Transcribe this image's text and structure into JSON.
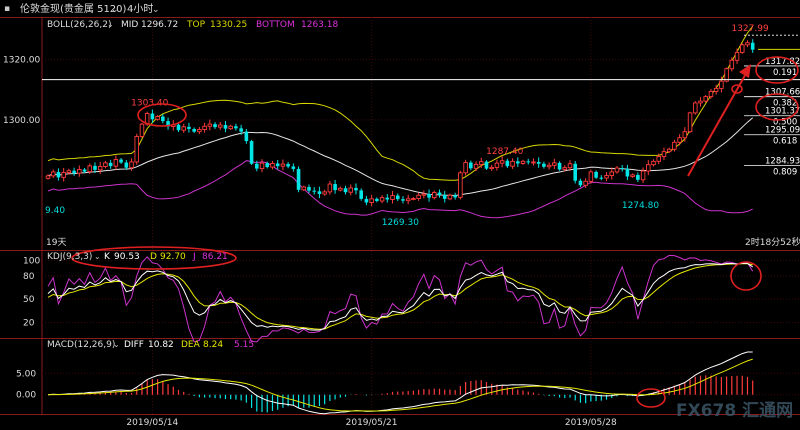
{
  "toolbar": {
    "title": "伦敦金现(贵金属 5120)",
    "timeframe": "4小时"
  },
  "colors": {
    "bg": "#000000",
    "grid": "#3a0000",
    "up": "#ff3b3b",
    "down": "#00e5e5",
    "boll_mid": "#e6e6e6",
    "boll_top": "#d8d800",
    "boll_bottom": "#cc33cc",
    "k": "#ffffff",
    "d": "#e6e600",
    "j": "#cc33cc",
    "diff": "#ffffff",
    "dea": "#e6e600",
    "annot": "#e02020"
  },
  "main_panel": {
    "indicator": "BOLL(26,26,2)",
    "mid_label": "MID",
    "mid_value": "1296.72",
    "top_label": "TOP",
    "top_value": "1330.25",
    "bottom_label": "BOTTOM",
    "bottom_value": "1263.18",
    "ylim": [
      1257,
      1334
    ],
    "yticks": [
      1320.0,
      1300.0
    ],
    "ytick_labels": [
      "1320.00",
      "1300.00"
    ],
    "corner_value": "9.40",
    "bottom_left_text": "19天",
    "countdown_text": "2时18分52秒",
    "peak_labels": [
      {
        "text": "1303.40",
        "index": 19,
        "value": 1303.4
      },
      {
        "text": "1269.30",
        "index": 67,
        "value": 1269.3
      },
      {
        "text": "1287.40",
        "index": 87,
        "value": 1287.4
      },
      {
        "text": "1274.80",
        "index": 113,
        "value": 1274.8
      },
      {
        "text": "1327.99",
        "index": 134,
        "value": 1327.99
      }
    ],
    "horizontal_line_value": 1313.3,
    "fib_levels": [
      {
        "price": "1317.82",
        "ratio": "0.191",
        "value": 1317.82
      },
      {
        "price": "1307.66",
        "ratio": "0.382",
        "value": 1307.66
      },
      {
        "price": "1301.37",
        "ratio": "0.500",
        "value": 1301.37
      },
      {
        "price": "1295.09",
        "ratio": "0.618",
        "value": 1295.09
      },
      {
        "price": "1284.93",
        "ratio": "0.809",
        "value": 1284.93
      }
    ],
    "fib_top_value": 1327.99
  },
  "kdj_panel": {
    "indicator": "KDJ(9,3,3)",
    "k_label": "K",
    "k_value": "90.53",
    "d_label": "D",
    "d_value": "92.70",
    "j_label": "J",
    "j_value": "86.21",
    "ylim": [
      0,
      112
    ],
    "yticks": [
      100,
      80,
      50,
      20
    ],
    "ytick_labels": [
      "100",
      "80",
      "50",
      "20"
    ]
  },
  "macd_panel": {
    "indicator": "MACD(12,26,9)",
    "diff_label": "DIFF",
    "diff_value": "10.82",
    "dea_label": "DEA",
    "dea_value": "8.24",
    "macd_value": "5.15",
    "ylim": [
      -4.5,
      13
    ],
    "yticks": [
      5.0,
      0.0
    ],
    "ytick_labels": [
      "5.00",
      "0.00"
    ]
  },
  "x_axis": {
    "date_labels": [
      {
        "text": "2019/05/14",
        "index": 20
      },
      {
        "text": "2019/05/21",
        "index": 62
      },
      {
        "text": "2019/05/28",
        "index": 104
      }
    ]
  },
  "watermark": "FX678 汇通网",
  "chart_data": {
    "type": "candlestick",
    "closes": [
      1281.5,
      1282.8,
      1281.0,
      1282.6,
      1283.2,
      1282.4,
      1283.6,
      1282.9,
      1284.8,
      1283.5,
      1284.6,
      1285.8,
      1284.7,
      1286.9,
      1285.9,
      1284.2,
      1286.1,
      1294.5,
      1298.6,
      1302.1,
      1300.2,
      1301.1,
      1299.6,
      1297.8,
      1298.4,
      1296.6,
      1297.7,
      1297.0,
      1296.1,
      1296.8,
      1297.9,
      1298.6,
      1297.6,
      1298.3,
      1297.1,
      1297.9,
      1297.2,
      1296.1,
      1293.0,
      1285.5,
      1283.9,
      1285.7,
      1284.4,
      1285.6,
      1284.7,
      1285.4,
      1284.6,
      1283.8,
      1276.9,
      1277.8,
      1276.6,
      1276.4,
      1275.5,
      1276.2,
      1278.8,
      1276.8,
      1277.4,
      1276.1,
      1277.5,
      1276.7,
      1273.9,
      1272.7,
      1273.9,
      1273.2,
      1274.3,
      1273.7,
      1275.0,
      1273.8,
      1273.3,
      1273.9,
      1274.0,
      1275.1,
      1275.5,
      1274.3,
      1276.0,
      1275.2,
      1273.9,
      1275.1,
      1274.4,
      1282.5,
      1285.9,
      1284.0,
      1285.3,
      1286.2,
      1283.9,
      1284.3,
      1285.7,
      1286.5,
      1284.7,
      1286.3,
      1285.6,
      1286.3,
      1286.0,
      1286.1,
      1285.5,
      1284.5,
      1285.0,
      1285.8,
      1283.6,
      1284.2,
      1285.5,
      1279.9,
      1278.4,
      1279.7,
      1282.8,
      1280.9,
      1280.8,
      1281.6,
      1282.8,
      1284.1,
      1283.8,
      1281.3,
      1281.8,
      1280.2,
      1283.1,
      1285.2,
      1286.3,
      1287.9,
      1289.5,
      1290.3,
      1292.6,
      1294.1,
      1296.1,
      1302.3,
      1305.6,
      1306.2,
      1307.7,
      1309.4,
      1310.4,
      1312.8,
      1316.9,
      1319.7,
      1322.3,
      1324.8,
      1325.5,
      1323.2
    ]
  }
}
